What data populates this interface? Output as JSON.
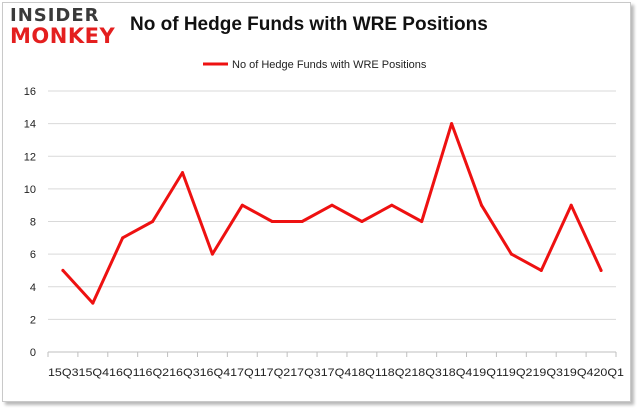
{
  "logo": {
    "top": "INSIDER",
    "bottom": "MONKEY"
  },
  "chart_data": {
    "type": "line",
    "title": "No of Hedge Funds with WRE Positions",
    "xlabel": "",
    "ylabel": "",
    "ylim": [
      0,
      16
    ],
    "yticks": [
      0,
      2,
      4,
      6,
      8,
      10,
      12,
      14,
      16
    ],
    "legend_position": "top-center",
    "grid": "horizontal",
    "x_tick_text": "15Q315Q416Q116Q216Q316Q417Q117Q217Q317Q418Q118Q218Q318Q419Q119Q219Q319Q420Q1",
    "categories": [
      "15Q3",
      "15Q4",
      "16Q1",
      "16Q2",
      "16Q3",
      "16Q4",
      "17Q1",
      "17Q2",
      "17Q3",
      "17Q4",
      "18Q1",
      "18Q2",
      "18Q3",
      "18Q4",
      "19Q1",
      "19Q2",
      "19Q3",
      "19Q4",
      "20Q1"
    ],
    "series": [
      {
        "name": "No of Hedge Funds with WRE Positions",
        "color": "#ee1111",
        "values": [
          5,
          3,
          7,
          8,
          11,
          6,
          9,
          8,
          8,
          9,
          8,
          9,
          8,
          14,
          9,
          6,
          5,
          9,
          5
        ]
      }
    ]
  }
}
